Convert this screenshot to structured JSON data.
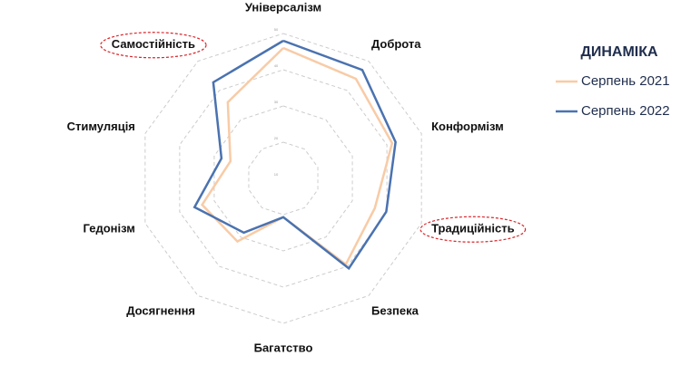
{
  "chart_data": {
    "type": "radar",
    "legend_title": "ДИНАМІКА",
    "categories": [
      "Універсалізм",
      "Доброта",
      "Конформізм",
      "Традиційність",
      "Безпека",
      "Багатство",
      "Досягнення",
      "Гедонізм",
      "Стимуляція",
      "Самостійність"
    ],
    "series": [
      {
        "name": "Серпень 2021",
        "color": "#f8cba6",
        "values": [
          46,
          44,
          41.5,
          36.5,
          39.3,
          20.7,
          31.5,
          33.5,
          25.3,
          36
        ]
      },
      {
        "name": "Серпень 2022",
        "color": "#4a72b0",
        "values": [
          48,
          47,
          42.5,
          39.8,
          40.7,
          20.7,
          28.5,
          35.7,
          27.9,
          42.8
        ]
      }
    ],
    "ylim": [
      10,
      50
    ],
    "yticks": [
      10,
      20,
      30,
      40,
      50
    ],
    "grid": true,
    "highlighted": [
      "Традиційність",
      "Самостійність"
    ]
  }
}
